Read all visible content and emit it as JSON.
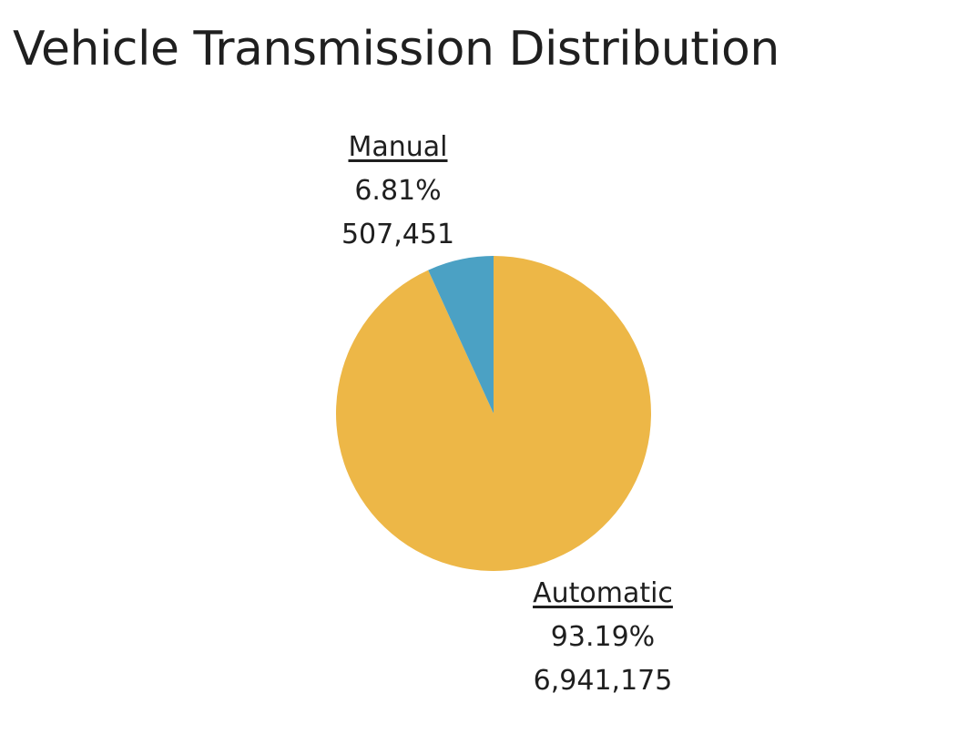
{
  "chart_data": {
    "type": "pie",
    "title": "Vehicle Transmission Distribution",
    "slices": [
      {
        "label": "Automatic",
        "percent": 93.19,
        "percent_label": "93.19%",
        "count": 6941175,
        "count_label": "6,941,175",
        "color": "#EDB747"
      },
      {
        "label": "Manual",
        "percent": 6.81,
        "percent_label": "6.81%",
        "count": 507451,
        "count_label": "507,451",
        "color": "#4BA1C4"
      }
    ],
    "start_angle_deg": 0,
    "direction": "clockwise"
  }
}
